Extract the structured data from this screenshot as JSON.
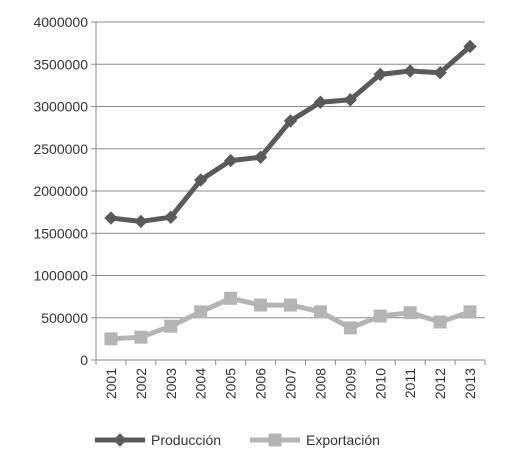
{
  "chart_data": {
    "type": "line",
    "title": "",
    "xlabel": "",
    "ylabel": "",
    "x": [
      "2001",
      "2002",
      "2003",
      "2004",
      "2005",
      "2006",
      "2007",
      "2008",
      "2009",
      "2010",
      "2011",
      "2012",
      "2013"
    ],
    "ylim": [
      0,
      4000000
    ],
    "y_ticks": [
      "0",
      "500000",
      "1000000",
      "1500000",
      "2000000",
      "2500000",
      "3000000",
      "3500000",
      "4000000"
    ],
    "y_tick_values": [
      0,
      500000,
      1000000,
      1500000,
      2000000,
      2500000,
      3000000,
      3500000,
      4000000
    ],
    "grid": "horizontal",
    "legend_position": "bottom",
    "series": [
      {
        "name": "Producción",
        "color": "#5a5a5a",
        "marker": "diamond",
        "values": [
          1680000,
          1640000,
          1690000,
          2130000,
          2360000,
          2400000,
          2830000,
          3050000,
          3080000,
          3380000,
          3420000,
          3400000,
          3710000
        ]
      },
      {
        "name": "Exportación",
        "color": "#b4b4b4",
        "marker": "square",
        "values": [
          250000,
          270000,
          400000,
          570000,
          730000,
          650000,
          650000,
          570000,
          380000,
          520000,
          560000,
          450000,
          570000
        ]
      }
    ]
  }
}
